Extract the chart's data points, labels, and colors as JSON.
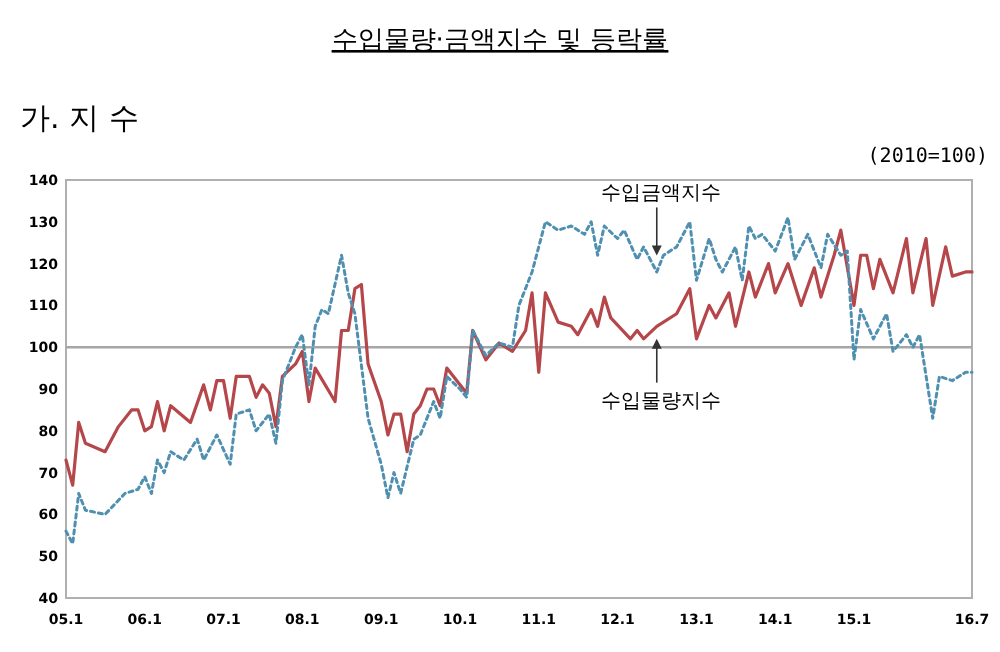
{
  "chart_data": {
    "type": "line",
    "title": "수입물량·금액지수 및 등락률",
    "subtitle": "가. 지 수",
    "xlim": [
      "2005-01",
      "2016-07"
    ],
    "xticks": [
      {
        "value": "2005-01",
        "label": "05.1"
      },
      {
        "value": "2006-01",
        "label": "06.1"
      },
      {
        "value": "2007-01",
        "label": "07.1"
      },
      {
        "value": "2008-01",
        "label": "08.1"
      },
      {
        "value": "2009-01",
        "label": "09.1"
      },
      {
        "value": "2010-01",
        "label": "10.1"
      },
      {
        "value": "2011-01",
        "label": "11.1"
      },
      {
        "value": "2012-01",
        "label": "12.1"
      },
      {
        "value": "2013-01",
        "label": "13.1"
      },
      {
        "value": "2014-01",
        "label": "14.1"
      },
      {
        "value": "2015-01",
        "label": "15.1"
      },
      {
        "value": "2016-07",
        "label": "16.7"
      }
    ],
    "ylim": [
      40,
      140
    ],
    "yticks": [
      40,
      50,
      60,
      70,
      80,
      90,
      100,
      110,
      120,
      130,
      140
    ],
    "grid": false,
    "marker": "none",
    "ref_lines": [
      {
        "axis": "y",
        "value": 100,
        "color": "#a6a6a6"
      }
    ],
    "annotations": [
      "(2010=100)",
      {
        "text": "수입금액지수",
        "x": "2012-07",
        "y": 121
      },
      {
        "text": "수입물량지수",
        "x": "2012-07",
        "y": 103
      }
    ],
    "series": [
      {
        "color": "#b5474b",
        "line_style": "solid",
        "x": [
          "2005-01",
          "2005-02",
          "2005-03",
          "2005-04",
          "2005-07",
          "2005-09",
          "2005-11",
          "2005-12",
          "2006-01",
          "2006-02",
          "2006-03",
          "2006-04",
          "2006-05",
          "2006-08",
          "2006-10",
          "2006-11",
          "2006-12",
          "2007-01",
          "2007-02",
          "2007-03",
          "2007-05",
          "2007-06",
          "2007-07",
          "2007-08",
          "2007-09",
          "2007-10",
          "2007-12",
          "2008-01",
          "2008-02",
          "2008-03",
          "2008-06",
          "2008-07",
          "2008-08",
          "2008-09",
          "2008-10",
          "2008-11",
          "2009-01",
          "2009-02",
          "2009-03",
          "2009-04",
          "2009-05",
          "2009-06",
          "2009-07",
          "2009-08",
          "2009-09",
          "2009-10",
          "2009-11",
          "2010-01",
          "2010-02",
          "2010-03",
          "2010-05",
          "2010-07",
          "2010-09",
          "2010-11",
          "2010-12",
          "2011-01",
          "2011-02",
          "2011-04",
          "2011-06",
          "2011-07",
          "2011-09",
          "2011-10",
          "2011-11",
          "2011-12",
          "2012-03",
          "2012-04",
          "2012-05",
          "2012-07",
          "2012-10",
          "2012-12",
          "2013-01",
          "2013-03",
          "2013-04",
          "2013-06",
          "2013-07",
          "2013-09",
          "2013-10",
          "2013-12",
          "2014-01",
          "2014-03",
          "2014-05",
          "2014-07",
          "2014-08",
          "2014-10",
          "2014-11",
          "2015-01",
          "2015-02",
          "2015-03",
          "2015-04",
          "2015-05",
          "2015-07",
          "2015-09",
          "2015-10",
          "2015-12",
          "2016-01",
          "2016-03",
          "2016-04",
          "2016-06",
          "2016-07"
        ],
        "values": [
          73,
          67,
          82,
          77,
          75,
          81,
          85,
          85,
          80,
          81,
          87,
          80,
          86,
          82,
          91,
          85,
          92,
          92,
          83,
          93,
          93,
          88,
          91,
          89,
          81,
          93,
          96,
          99,
          87,
          95,
          87,
          104,
          104,
          114,
          115,
          96,
          87,
          79,
          84,
          84,
          75,
          84,
          86,
          90,
          90,
          86,
          95,
          91,
          89,
          104,
          97,
          101,
          99,
          104,
          113,
          94,
          113,
          106,
          105,
          103,
          109,
          105,
          112,
          107,
          102,
          104,
          102,
          105,
          108,
          114,
          102,
          110,
          107,
          113,
          105,
          118,
          112,
          120,
          113,
          120,
          110,
          119,
          112,
          122,
          128,
          110,
          122,
          122,
          114,
          121,
          113,
          126,
          113,
          126,
          110,
          124,
          117,
          118,
          118
        ]
      },
      {
        "color": "#4f8fb0",
        "line_style": "dotted",
        "x": [
          "2005-01",
          "2005-02",
          "2005-03",
          "2005-04",
          "2005-07",
          "2005-10",
          "2005-12",
          "2006-01",
          "2006-02",
          "2006-03",
          "2006-04",
          "2006-05",
          "2006-07",
          "2006-09",
          "2006-10",
          "2006-12",
          "2007-02",
          "2007-03",
          "2007-05",
          "2007-06",
          "2007-08",
          "2007-09",
          "2007-10",
          "2007-12",
          "2008-01",
          "2008-02",
          "2008-03",
          "2008-04",
          "2008-05",
          "2008-07",
          "2008-08",
          "2008-09",
          "2008-11",
          "2009-01",
          "2009-02",
          "2009-03",
          "2009-04",
          "2009-06",
          "2009-07",
          "2009-09",
          "2009-10",
          "2009-11",
          "2010-01",
          "2010-02",
          "2010-03",
          "2010-05",
          "2010-07",
          "2010-09",
          "2010-10",
          "2010-12",
          "2011-02",
          "2011-04",
          "2011-06",
          "2011-08",
          "2011-09",
          "2011-10",
          "2011-11",
          "2012-01",
          "2012-02",
          "2012-04",
          "2012-05",
          "2012-07",
          "2012-08",
          "2012-10",
          "2012-12",
          "2013-01",
          "2013-03",
          "2013-04",
          "2013-05",
          "2013-07",
          "2013-08",
          "2013-09",
          "2013-10",
          "2013-11",
          "2014-01",
          "2014-03",
          "2014-04",
          "2014-06",
          "2014-08",
          "2014-09",
          "2014-11",
          "2014-12",
          "2015-01",
          "2015-02",
          "2015-04",
          "2015-06",
          "2015-07",
          "2015-09",
          "2015-10",
          "2015-11",
          "2016-01",
          "2016-02",
          "2016-04",
          "2016-06",
          "2016-07"
        ],
        "values": [
          56,
          53,
          65,
          61,
          60,
          65,
          66,
          69,
          65,
          73,
          70,
          75,
          73,
          78,
          73,
          79,
          72,
          84,
          85,
          80,
          84,
          77,
          92,
          100,
          103,
          91,
          105,
          109,
          108,
          122,
          113,
          108,
          83,
          72,
          64,
          70,
          65,
          78,
          79,
          87,
          83,
          93,
          90,
          88,
          104,
          98,
          101,
          100,
          110,
          118,
          130,
          128,
          129,
          127,
          130,
          122,
          129,
          126,
          128,
          121,
          124,
          118,
          122,
          124,
          130,
          116,
          126,
          121,
          118,
          124,
          116,
          129,
          126,
          127,
          123,
          131,
          121,
          127,
          119,
          127,
          122,
          123,
          97,
          109,
          102,
          108,
          99,
          103,
          100,
          103,
          83,
          93,
          92,
          94,
          94
        ]
      }
    ]
  }
}
